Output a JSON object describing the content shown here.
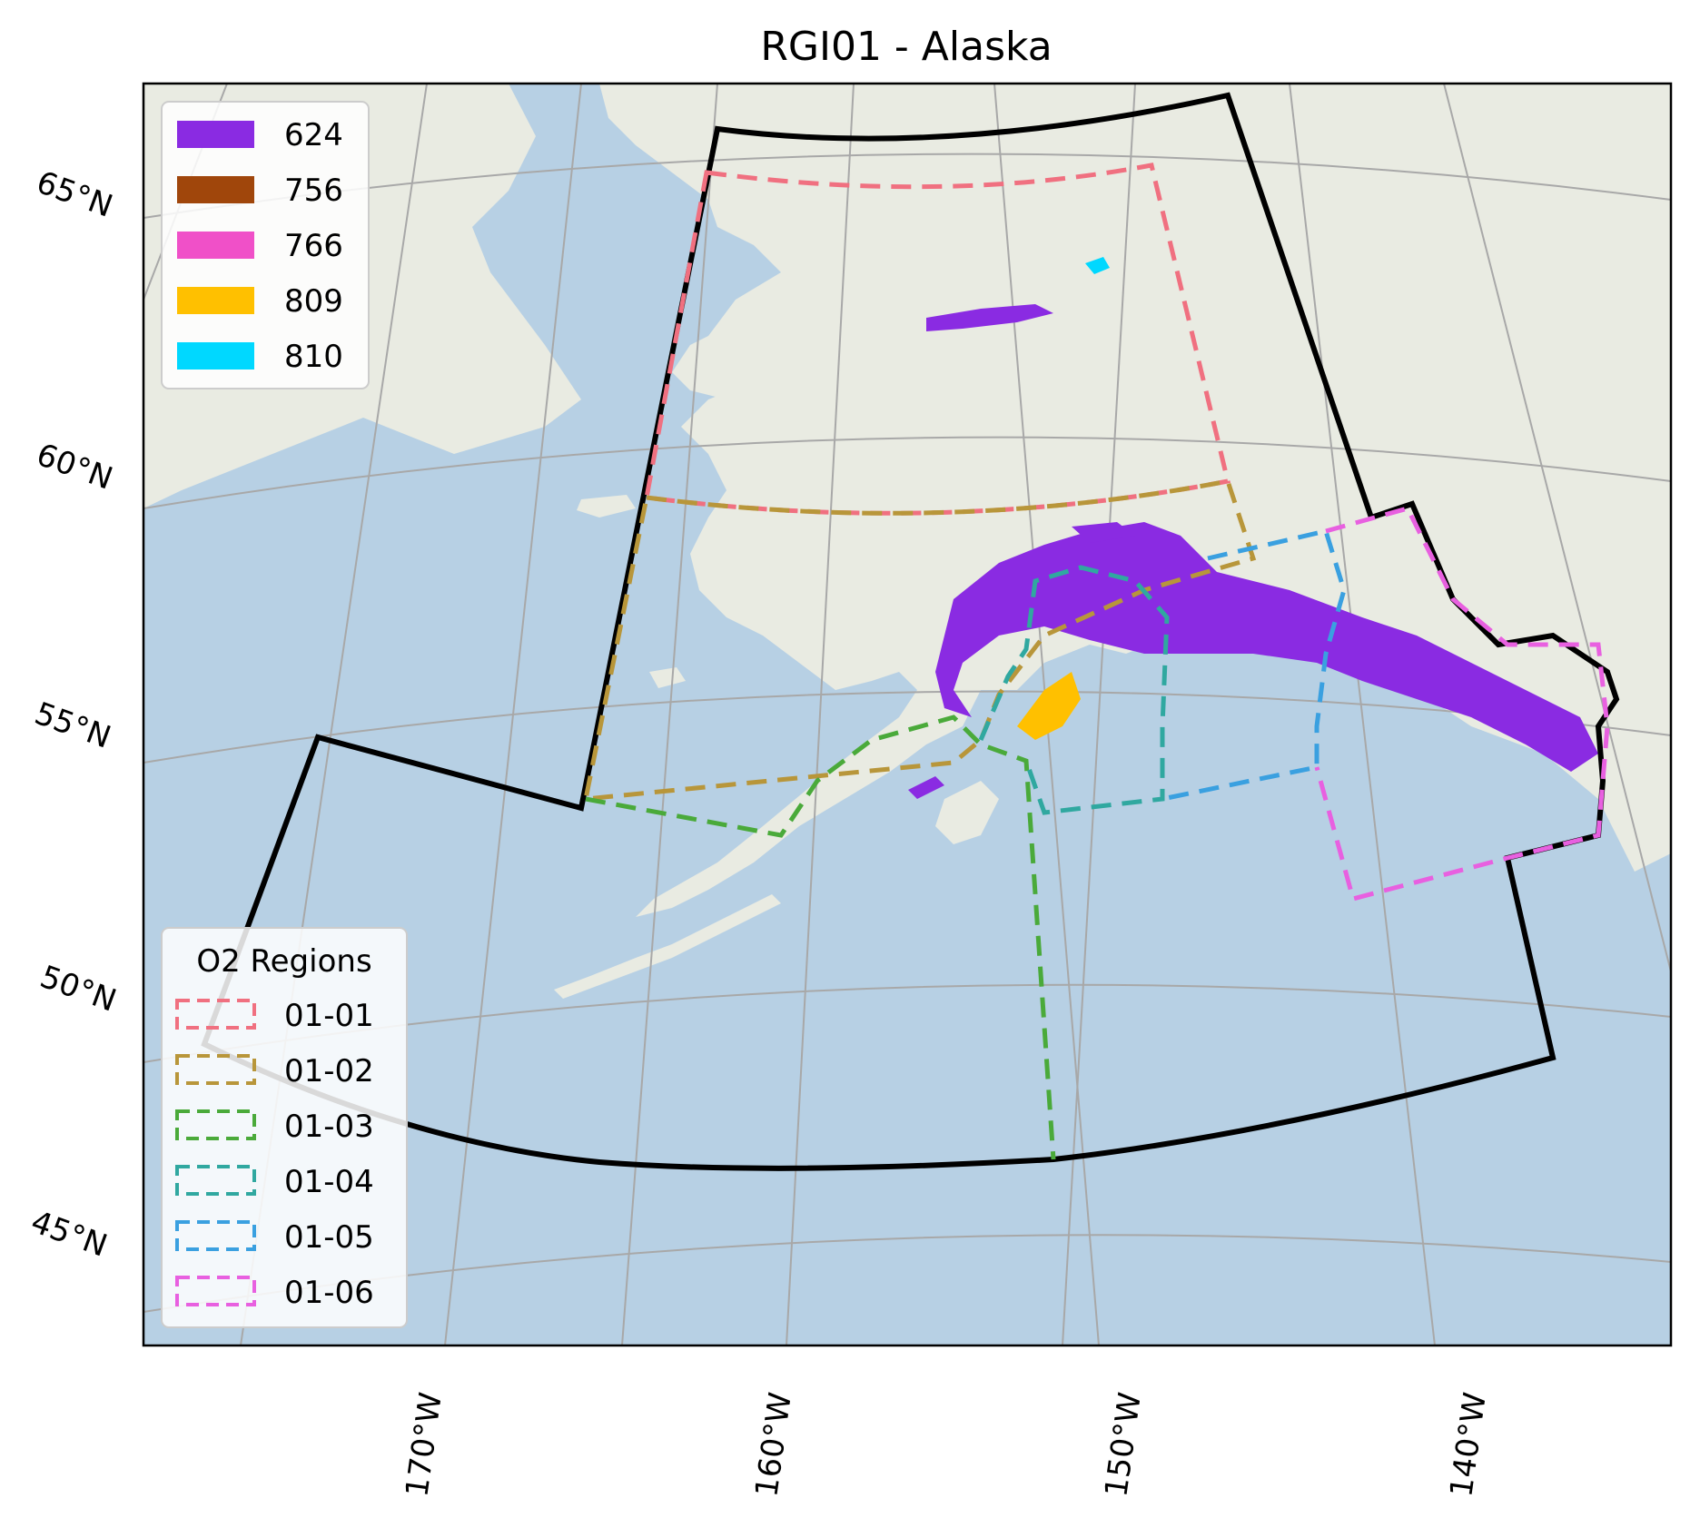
{
  "title": "RGI01 - Alaska",
  "lat_labels": [
    "65°N",
    "60°N",
    "55°N",
    "50°N",
    "45°N"
  ],
  "lon_labels": [
    "170°W",
    "160°W",
    "150°W",
    "140°W"
  ],
  "legend_glaciers": {
    "items": [
      {
        "label": "624",
        "color": "#8a2be2"
      },
      {
        "label": "756",
        "color": "#a0460b"
      },
      {
        "label": "766",
        "color": "#f050c8"
      },
      {
        "label": "809",
        "color": "#ffc000"
      },
      {
        "label": "810",
        "color": "#00d8ff"
      }
    ]
  },
  "legend_regions": {
    "title": "O2 Regions",
    "items": [
      {
        "label": "01-01",
        "color": "#f07080"
      },
      {
        "label": "01-02",
        "color": "#b8963a"
      },
      {
        "label": "01-03",
        "color": "#4aaa3a"
      },
      {
        "label": "01-04",
        "color": "#30a8a0"
      },
      {
        "label": "01-05",
        "color": "#3aa0e0"
      },
      {
        "label": "01-06",
        "color": "#e860e0"
      }
    ]
  },
  "colors": {
    "ocean": "#b7d0e4",
    "land": "#e9ebe2",
    "graticule": "#a8a8a8",
    "outline": "#000000"
  }
}
